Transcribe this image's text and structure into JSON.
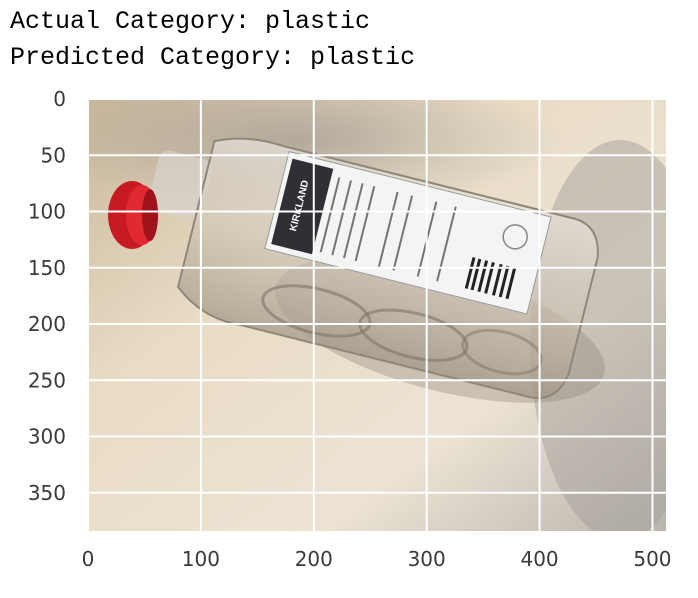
{
  "output": {
    "actual_line": "Actual Category: plastic",
    "predicted_line": "Predicted Category: plastic"
  },
  "image": {
    "subject": "clear plastic bottle with red cap and KIRKLAND label",
    "label_brand": "KIRKLAND",
    "width": 512,
    "height": 384
  },
  "axes": {
    "x_ticks": [
      "0",
      "100",
      "200",
      "300",
      "400",
      "500"
    ],
    "y_ticks": [
      "0",
      "50",
      "100",
      "150",
      "200",
      "250",
      "300",
      "350"
    ],
    "x_tick_values": [
      0,
      100,
      200,
      300,
      400,
      500
    ],
    "y_tick_values": [
      0,
      50,
      100,
      150,
      200,
      250,
      300,
      350
    ],
    "grid": true,
    "grid_color": "#ffffff"
  },
  "colors": {
    "cap": "#c81a22",
    "background_warm": "#e7d9c1",
    "background_shadow": "#a9a39b"
  }
}
